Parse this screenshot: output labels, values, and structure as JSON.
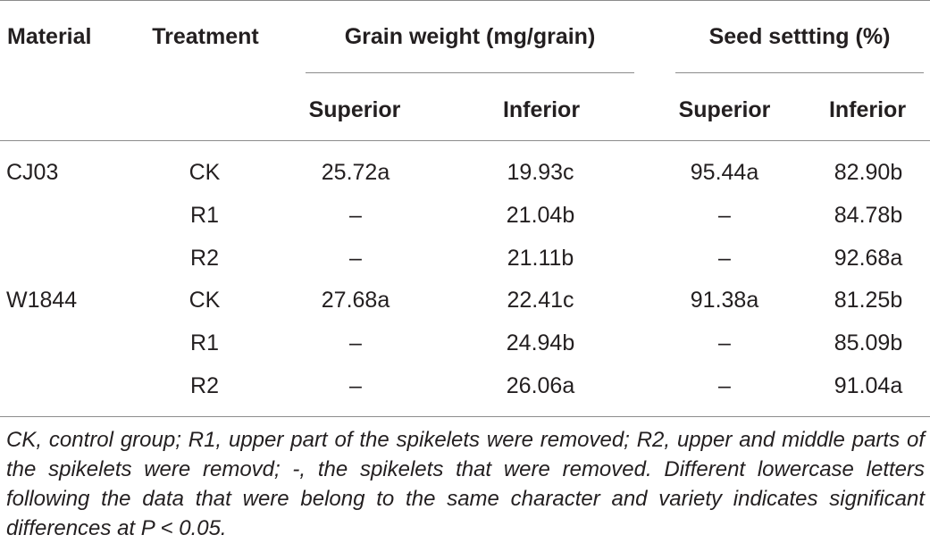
{
  "headers": {
    "material": "Material",
    "treatment": "Treatment",
    "grain_weight": "Grain weight (mg/grain)",
    "seed_setting": "Seed settting (%)",
    "gw_superior": "Superior",
    "gw_inferior": "Inferior",
    "ss_superior": "Superior",
    "ss_inferior": "Inferior"
  },
  "rows": [
    {
      "material": "CJ03",
      "treatment": "CK",
      "gw_superior": "25.72a",
      "gw_inferior": "19.93c",
      "ss_superior": "95.44a",
      "ss_inferior": "82.90b"
    },
    {
      "material": "",
      "treatment": "R1",
      "gw_superior": "–",
      "gw_inferior": "21.04b",
      "ss_superior": "–",
      "ss_inferior": "84.78b"
    },
    {
      "material": "",
      "treatment": "R2",
      "gw_superior": "–",
      "gw_inferior": "21.11b",
      "ss_superior": "–",
      "ss_inferior": "92.68a"
    },
    {
      "material": "W1844",
      "treatment": "CK",
      "gw_superior": "27.68a",
      "gw_inferior": "22.41c",
      "ss_superior": "91.38a",
      "ss_inferior": "81.25b"
    },
    {
      "material": "",
      "treatment": "R1",
      "gw_superior": "–",
      "gw_inferior": "24.94b",
      "ss_superior": "–",
      "ss_inferior": "85.09b"
    },
    {
      "material": "",
      "treatment": "R2",
      "gw_superior": "–",
      "gw_inferior": "26.06a",
      "ss_superior": "–",
      "ss_inferior": "91.04a"
    }
  ],
  "footnote": "CK, control group; R1, upper part of the spikelets were removed; R2, upper and middle parts of the spikelets were removd; -, the spikelets that were removed. Different lowercase letters following the data that were belong to the same character and variety indicates significant differences at P < 0.05."
}
